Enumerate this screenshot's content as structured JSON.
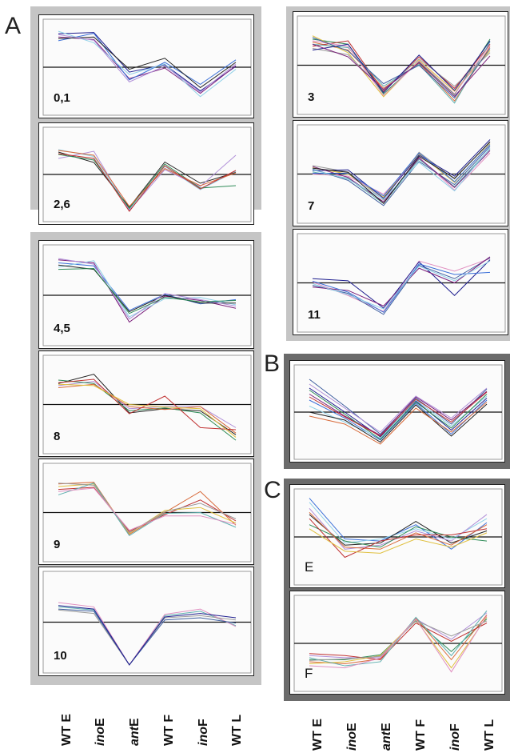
{
  "figure": {
    "letters": {
      "A": "A",
      "B": "B",
      "C": "C"
    }
  },
  "x_axis": {
    "categories": [
      "WT E",
      "ino E",
      "ant E",
      "WT F",
      "ino F",
      "WT L"
    ],
    "prefix": [
      "WT",
      "ino",
      "ant",
      "WT",
      "ino",
      "WT"
    ],
    "suffix": [
      "E",
      "E",
      "E",
      "F",
      "F",
      "L"
    ]
  },
  "colors": {
    "group_light": "#c5c5c5",
    "group_dark": "#6b6b6b",
    "panel_border": "#222222",
    "baseline": "#111111",
    "series_palette": [
      "#1f1f8f",
      "#7b1f7b",
      "#3a6fd8",
      "#8fd0e8",
      "#222222",
      "#b08fd8",
      "#2e8b57",
      "#d86a3a",
      "#c03030",
      "#e0c040",
      "#5fb0b0",
      "#9a9a9a",
      "#e08fc0",
      "#4060a0"
    ]
  },
  "chart_data": [
    {
      "id": "p01",
      "type": "line",
      "label": "0,1",
      "categories": [
        "WT E",
        "ino E",
        "ant E",
        "WT F",
        "ino F",
        "WT L"
      ],
      "ylim": [
        -1,
        1
      ],
      "series": [
        {
          "values": [
            0.82,
            0.85,
            -0.12,
            0.06,
            -0.58,
            0.02
          ]
        },
        {
          "values": [
            0.74,
            0.68,
            -0.28,
            -0.02,
            -0.64,
            0.04
          ]
        },
        {
          "values": [
            0.65,
            0.83,
            -0.31,
            0.12,
            -0.42,
            0.18
          ]
        },
        {
          "values": [
            0.88,
            0.6,
            -0.18,
            0.08,
            -0.72,
            -0.05
          ]
        },
        {
          "values": [
            0.7,
            0.74,
            -0.05,
            0.22,
            -0.5,
            0.12
          ]
        },
        {
          "values": [
            0.8,
            0.66,
            -0.36,
            0.03,
            -0.61,
            0.08
          ]
        }
      ]
    },
    {
      "id": "p26",
      "type": "line",
      "label": "2,6",
      "categories": [
        "WT E",
        "ino E",
        "ant E",
        "WT F",
        "ino F",
        "WT L"
      ],
      "ylim": [
        -1,
        1
      ],
      "series": [
        {
          "values": [
            0.62,
            0.45,
            -0.88,
            0.2,
            -0.38,
            0.08
          ]
        },
        {
          "values": [
            0.56,
            0.3,
            -0.82,
            0.31,
            -0.22,
            0.05
          ]
        },
        {
          "values": [
            0.4,
            0.58,
            -0.9,
            0.12,
            -0.3,
            0.48
          ]
        },
        {
          "values": [
            0.5,
            0.36,
            -0.85,
            0.26,
            -0.34,
            -0.28
          ]
        },
        {
          "values": [
            0.6,
            0.48,
            -0.8,
            0.15,
            -0.28,
            0.04
          ]
        },
        {
          "values": [
            0.52,
            0.4,
            -0.92,
            0.22,
            -0.36,
            0.1
          ]
        }
      ]
    },
    {
      "id": "p3",
      "type": "line",
      "label": "3",
      "categories": [
        "WT E",
        "ino E",
        "ant E",
        "WT F",
        "ino F",
        "WT L"
      ],
      "ylim": [
        -1,
        1
      ],
      "series": [
        {
          "values": [
            0.62,
            0.5,
            -0.68,
            0.08,
            -0.7,
            0.62
          ]
        },
        {
          "values": [
            0.55,
            0.36,
            -0.55,
            0.05,
            -0.85,
            0.44
          ]
        },
        {
          "values": [
            0.45,
            0.58,
            -0.62,
            0.2,
            -0.55,
            0.5
          ]
        },
        {
          "values": [
            0.7,
            0.3,
            -0.75,
            0.12,
            -0.62,
            0.35
          ]
        },
        {
          "values": [
            0.5,
            0.42,
            -0.5,
            0.02,
            -0.9,
            0.55
          ]
        },
        {
          "values": [
            0.4,
            0.25,
            -0.6,
            0.15,
            -0.5,
            0.3
          ]
        },
        {
          "values": [
            0.58,
            0.45,
            -0.72,
            0.1,
            -0.68,
            0.48
          ]
        },
        {
          "values": [
            0.66,
            0.34,
            -0.44,
            0.0,
            -0.78,
            0.4
          ]
        },
        {
          "values": [
            0.36,
            0.5,
            -0.65,
            0.24,
            -0.6,
            0.58
          ]
        },
        {
          "values": [
            0.5,
            0.2,
            -0.58,
            0.06,
            -0.74,
            0.22
          ]
        }
      ]
    },
    {
      "id": "p7",
      "type": "line",
      "label": "7",
      "categories": [
        "WT E",
        "ino E",
        "ant E",
        "WT F",
        "ino F",
        "WT L"
      ],
      "ylim": [
        -1,
        1
      ],
      "series": [
        {
          "values": [
            0.15,
            0.0,
            -0.55,
            0.48,
            -0.2,
            0.72
          ]
        },
        {
          "values": [
            0.05,
            -0.1,
            -0.7,
            0.35,
            -0.3,
            0.6
          ]
        },
        {
          "values": [
            0.2,
            0.05,
            -0.62,
            0.52,
            -0.12,
            0.78
          ]
        },
        {
          "values": [
            0.0,
            -0.05,
            -0.48,
            0.4,
            -0.38,
            0.5
          ]
        },
        {
          "values": [
            0.12,
            -0.15,
            -0.75,
            0.3,
            -0.25,
            0.66
          ]
        },
        {
          "values": [
            0.08,
            0.1,
            -0.58,
            0.45,
            -0.05,
            0.82
          ]
        },
        {
          "values": [
            0.18,
            -0.08,
            -0.66,
            0.38,
            -0.32,
            0.56
          ]
        },
        {
          "values": [
            0.02,
            0.02,
            -0.52,
            0.5,
            -0.18,
            0.7
          ]
        },
        {
          "values": [
            0.1,
            -0.12,
            -0.6,
            0.28,
            -0.4,
            0.62
          ]
        },
        {
          "values": [
            0.14,
            0.04,
            -0.7,
            0.42,
            -0.1,
            0.76
          ]
        }
      ]
    },
    {
      "id": "p11",
      "type": "line",
      "label": "11",
      "categories": [
        "WT E",
        "ino E",
        "ant E",
        "WT F",
        "ino F",
        "WT L"
      ],
      "ylim": [
        -1,
        1
      ],
      "series": [
        {
          "values": [
            0.02,
            -0.3,
            -0.68,
            0.52,
            0.28,
            0.58
          ]
        },
        {
          "values": [
            -0.06,
            -0.25,
            -0.75,
            0.42,
            0.1,
            0.6
          ]
        },
        {
          "values": [
            0.1,
            0.05,
            -0.6,
            0.5,
            -0.3,
            0.55
          ]
        },
        {
          "values": [
            -0.1,
            -0.18,
            -0.55,
            0.35,
            0.0,
            0.62
          ]
        },
        {
          "values": [
            0.04,
            -0.22,
            -0.7,
            0.45,
            0.2,
            0.25
          ]
        },
        {
          "values": [
            -0.02,
            -0.28,
            -0.62,
            0.4,
            0.05,
            0.52
          ]
        }
      ]
    },
    {
      "id": "p45",
      "type": "line",
      "label": "4,5",
      "categories": [
        "WT E",
        "ino E",
        "ant E",
        "WT F",
        "ino F",
        "WT L"
      ],
      "ylim": [
        -1,
        1
      ],
      "series": [
        {
          "values": [
            0.82,
            0.75,
            -0.62,
            -0.02,
            -0.12,
            -0.3
          ]
        },
        {
          "values": [
            0.75,
            0.68,
            -0.35,
            0.02,
            -0.2,
            -0.1
          ]
        },
        {
          "values": [
            0.65,
            0.8,
            -0.5,
            -0.08,
            -0.05,
            -0.22
          ]
        },
        {
          "values": [
            0.7,
            0.6,
            -0.38,
            0.0,
            -0.18,
            -0.18
          ]
        },
        {
          "values": [
            0.85,
            0.72,
            -0.55,
            0.04,
            -0.1,
            -0.25
          ]
        },
        {
          "values": [
            0.6,
            0.62,
            -0.42,
            -0.05,
            -0.15,
            -0.12
          ]
        }
      ]
    },
    {
      "id": "p8",
      "type": "line",
      "label": "8",
      "categories": [
        "WT E",
        "ino E",
        "ant E",
        "WT F",
        "ino F",
        "WT L"
      ],
      "ylim": [
        -1,
        1
      ],
      "series": [
        {
          "values": [
            0.5,
            0.72,
            -0.2,
            -0.1,
            -0.15,
            -0.72
          ]
        },
        {
          "values": [
            0.45,
            0.55,
            -0.1,
            -0.05,
            -0.05,
            -0.55
          ]
        },
        {
          "values": [
            0.58,
            0.5,
            -0.15,
            -0.08,
            -0.2,
            -0.85
          ]
        },
        {
          "values": [
            0.4,
            0.48,
            -0.05,
            -0.12,
            -0.05,
            -0.68
          ]
        },
        {
          "values": [
            0.52,
            0.6,
            -0.22,
            0.2,
            -0.55,
            -0.6
          ]
        },
        {
          "values": [
            0.48,
            0.45,
            0.0,
            -0.06,
            -0.1,
            -0.78
          ]
        }
      ]
    },
    {
      "id": "p9",
      "type": "line",
      "label": "9",
      "categories": [
        "WT E",
        "ino E",
        "ant E",
        "WT F",
        "ino F",
        "WT L"
      ],
      "ylim": [
        -1,
        1
      ],
      "series": [
        {
          "values": [
            0.68,
            0.72,
            -0.52,
            0.0,
            0.5,
            -0.3
          ]
        },
        {
          "values": [
            0.55,
            0.6,
            -0.45,
            -0.05,
            0.3,
            -0.2
          ]
        },
        {
          "values": [
            0.62,
            0.68,
            -0.5,
            0.05,
            0.12,
            -0.25
          ]
        },
        {
          "values": [
            0.42,
            0.7,
            -0.55,
            -0.02,
            0.0,
            -0.35
          ]
        },
        {
          "values": [
            0.7,
            0.65,
            -0.48,
            0.02,
            0.22,
            -0.15
          ]
        },
        {
          "values": [
            0.5,
            0.58,
            -0.42,
            -0.08,
            -0.08,
            -0.28
          ]
        }
      ]
    },
    {
      "id": "p10",
      "type": "line",
      "label": "10",
      "categories": [
        "WT E",
        "ino E",
        "ant E",
        "WT F",
        "ino F",
        "WT L"
      ],
      "ylim": [
        -1,
        1
      ],
      "series": [
        {
          "values": [
            0.35,
            0.28,
            -0.98,
            0.15,
            0.25,
            -0.08
          ]
        },
        {
          "values": [
            0.28,
            0.2,
            -0.98,
            0.1,
            0.15,
            0.05
          ]
        },
        {
          "values": [
            0.45,
            0.35,
            -0.98,
            0.18,
            0.3,
            -0.1
          ]
        },
        {
          "values": [
            0.3,
            0.25,
            -0.98,
            0.05,
            0.1,
            -0.02
          ]
        },
        {
          "values": [
            0.38,
            0.3,
            -0.98,
            0.12,
            0.2,
            0.1
          ]
        }
      ]
    },
    {
      "id": "pB",
      "type": "line",
      "label": "",
      "categories": [
        "WT E",
        "ino E",
        "ant E",
        "WT F",
        "ino F",
        "WT L"
      ],
      "ylim": [
        -1,
        1
      ],
      "series": [
        {
          "values": [
            0.82,
            0.15,
            -0.55,
            0.35,
            -0.3,
            0.58
          ]
        },
        {
          "values": [
            0.6,
            0.0,
            -0.62,
            0.28,
            -0.45,
            0.35
          ]
        },
        {
          "values": [
            0.45,
            -0.1,
            -0.58,
            0.38,
            -0.2,
            0.52
          ]
        },
        {
          "values": [
            0.3,
            -0.15,
            -0.7,
            0.22,
            -0.55,
            0.3
          ]
        },
        {
          "values": [
            0.15,
            -0.25,
            -0.65,
            0.3,
            -0.35,
            0.4
          ]
        },
        {
          "values": [
            0.0,
            -0.2,
            -0.75,
            0.18,
            -0.6,
            0.2
          ]
        },
        {
          "values": [
            0.7,
            0.1,
            -0.5,
            0.4,
            -0.15,
            0.6
          ]
        },
        {
          "values": [
            0.55,
            -0.05,
            -0.68,
            0.25,
            -0.4,
            0.45
          ]
        },
        {
          "values": [
            -0.1,
            -0.3,
            -0.8,
            0.1,
            -0.5,
            0.25
          ]
        },
        {
          "values": [
            0.38,
            -0.12,
            -0.6,
            0.32,
            -0.25,
            0.5
          ]
        }
      ]
    },
    {
      "id": "pE",
      "type": "line",
      "label": "E",
      "categories": [
        "WT E",
        "ino E",
        "ant E",
        "WT F",
        "ino F",
        "WT L"
      ],
      "ylim": [
        -1,
        1
      ],
      "series": [
        {
          "values": [
            0.95,
            -0.05,
            -0.1,
            0.3,
            -0.3,
            0.35
          ]
        },
        {
          "values": [
            0.85,
            -0.15,
            -0.05,
            0.2,
            -0.05,
            0.45
          ]
        },
        {
          "values": [
            0.55,
            -0.2,
            -0.15,
            0.38,
            -0.15,
            0.15
          ]
        },
        {
          "values": [
            0.7,
            -0.3,
            -0.2,
            0.15,
            -0.1,
            0.55
          ]
        },
        {
          "values": [
            0.3,
            -0.1,
            -0.25,
            0.25,
            0.0,
            -0.1
          ]
        },
        {
          "values": [
            0.6,
            -0.25,
            -0.3,
            0.1,
            -0.2,
            0.3
          ]
        },
        {
          "values": [
            0.45,
            -0.5,
            -0.1,
            0.05,
            0.05,
            0.2
          ]
        },
        {
          "values": [
            0.2,
            -0.35,
            -0.4,
            -0.05,
            -0.25,
            0.1
          ]
        }
      ]
    },
    {
      "id": "pF",
      "type": "line",
      "label": "F",
      "categories": [
        "WT E",
        "ino E",
        "ant E",
        "WT F",
        "ino F",
        "WT L"
      ],
      "ylim": [
        -1,
        1
      ],
      "series": [
        {
          "values": [
            -0.3,
            -0.35,
            -0.35,
            0.6,
            0.1,
            0.75
          ]
        },
        {
          "values": [
            -0.4,
            -0.4,
            -0.28,
            0.55,
            -0.2,
            0.6
          ]
        },
        {
          "values": [
            -0.45,
            -0.5,
            -0.38,
            0.62,
            -0.4,
            0.7
          ]
        },
        {
          "values": [
            -0.25,
            -0.3,
            -0.4,
            0.5,
            0.05,
            0.5
          ]
        },
        {
          "values": [
            -0.5,
            -0.45,
            -0.3,
            0.58,
            -0.6,
            0.65
          ]
        },
        {
          "values": [
            -0.35,
            -0.55,
            -0.45,
            0.64,
            -0.3,
            0.8
          ]
        },
        {
          "values": [
            -0.42,
            -0.38,
            -0.32,
            0.56,
            0.18,
            0.55
          ]
        },
        {
          "values": [
            -0.55,
            -0.6,
            -0.36,
            0.6,
            -0.7,
            0.68
          ]
        }
      ]
    }
  ]
}
